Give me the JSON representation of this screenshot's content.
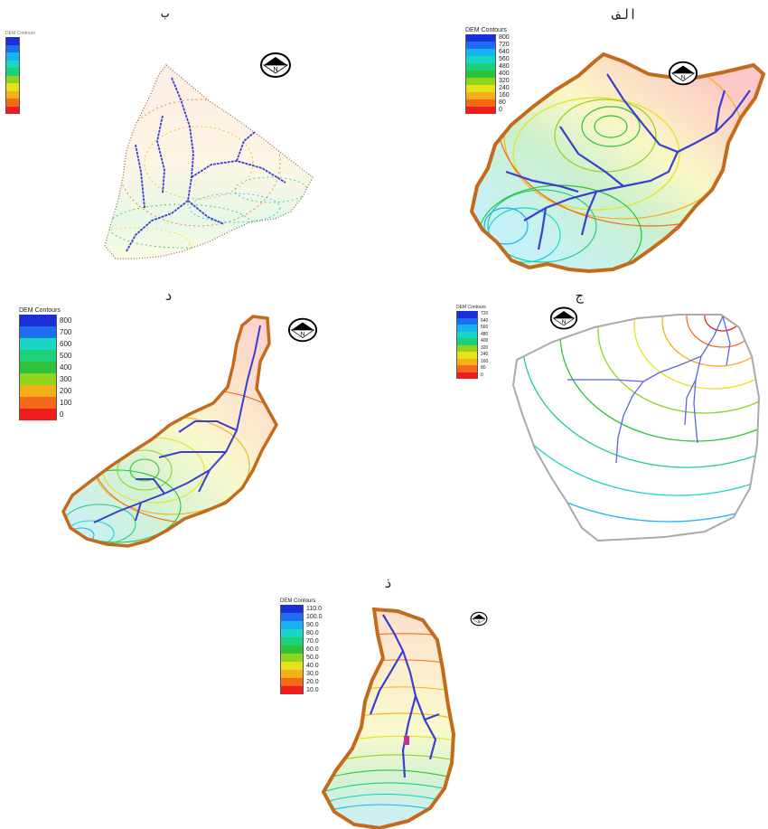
{
  "panels": [
    {
      "id": "alef",
      "label": "الف",
      "legend": {
        "title": "DEM Contours",
        "values": [
          "800",
          "720",
          "640",
          "560",
          "480",
          "400",
          "320",
          "240",
          "160",
          "80",
          "0"
        ]
      }
    },
    {
      "id": "be",
      "label": "ب",
      "legend": {
        "title": "DEM Contours",
        "values": [
          "",
          "",
          "",
          "",
          "",
          "",
          "",
          "",
          "",
          ""
        ]
      }
    },
    {
      "id": "jim",
      "label": "ج",
      "legend": {
        "title": "DEM Contours",
        "values": [
          "720",
          "640",
          "560",
          "480",
          "400",
          "320",
          "240",
          "160",
          "80",
          "0"
        ]
      }
    },
    {
      "id": "dal",
      "label": "د",
      "legend": {
        "title": "DEM Contours",
        "values": [
          "800",
          "700",
          "600",
          "500",
          "400",
          "300",
          "200",
          "100",
          "0"
        ]
      }
    },
    {
      "id": "zal",
      "label": "ذ",
      "legend": {
        "title": "DEM Contours",
        "values": [
          "110.0",
          "100.0",
          "90.0",
          "80.0",
          "70.0",
          "60.0",
          "50.0",
          "40.0",
          "30.0",
          "20.0",
          "10.0"
        ]
      }
    }
  ],
  "north_arrow": {
    "letter": "N"
  },
  "colors": {
    "outline": "#c46a1c",
    "stream": "#3b3fd0",
    "ramp": [
      "#1a2fd8",
      "#1d6ff0",
      "#17b4f2",
      "#1ad6c6",
      "#1dd17a",
      "#2fc33b",
      "#8fd41e",
      "#e6e21a",
      "#f4b019",
      "#f46a19",
      "#ee1e1e"
    ]
  }
}
